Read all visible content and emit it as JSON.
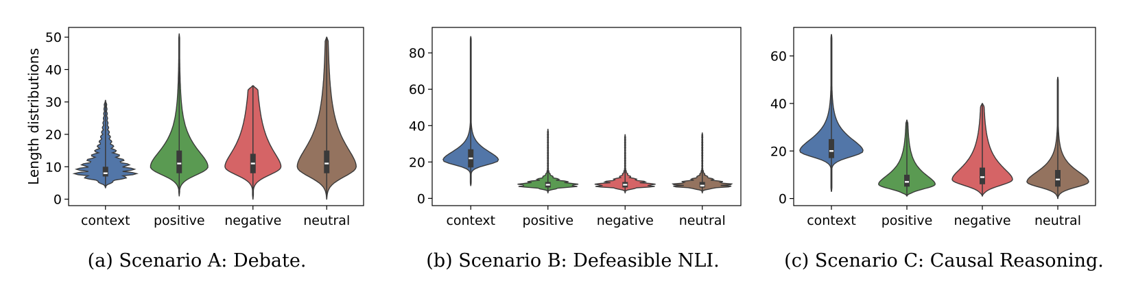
{
  "palette": {
    "context": "#5276a8",
    "positive": "#5a9a52",
    "negative": "#d56466",
    "neutral": "#94735f",
    "outline": "#3a3a3a"
  },
  "chart_data": [
    {
      "type": "violin",
      "panel": "a",
      "caption": "(a) Scenario A: Debate.",
      "ylabel": "Length distributions",
      "xlabel": "",
      "categories": [
        "context",
        "positive",
        "negative",
        "neutral"
      ],
      "ylim": [
        -2,
        53
      ],
      "yticks": [
        0,
        10,
        20,
        30,
        40,
        50
      ],
      "grid": false,
      "legend": "none",
      "series": [
        {
          "category": "context",
          "min": 3.5,
          "q1": 7,
          "median": 8,
          "q3": 10,
          "max": 30.5,
          "mode": 8,
          "width": 0.85,
          "spread": 3,
          "hatched": true
        },
        {
          "category": "positive",
          "min": 1,
          "q1": 8,
          "median": 11,
          "q3": 15,
          "max": 51,
          "mode": 10,
          "width": 0.78,
          "spread": 4.5,
          "hatched": false
        },
        {
          "category": "negative",
          "min": 0,
          "q1": 8,
          "median": 11,
          "q3": 14,
          "max": 35,
          "mode": 10,
          "width": 0.76,
          "spread": 4.5,
          "hatched": false
        },
        {
          "category": "neutral",
          "min": 0,
          "q1": 8,
          "median": 11,
          "q3": 15,
          "max": 50,
          "mode": 10,
          "width": 0.8,
          "spread": 5.5,
          "hatched": false
        }
      ]
    },
    {
      "type": "violin",
      "panel": "b",
      "caption": "(b) Scenario B: Defeasible NLI.",
      "ylabel": "",
      "xlabel": "",
      "categories": [
        "context",
        "positive",
        "negative",
        "neutral"
      ],
      "ylim": [
        -4,
        94
      ],
      "yticks": [
        0,
        20,
        40,
        60,
        80
      ],
      "grid": false,
      "legend": "none",
      "series": [
        {
          "category": "context",
          "min": 7,
          "q1": 17,
          "median": 22,
          "q3": 27,
          "max": 89,
          "mode": 21,
          "width": 0.72,
          "spread": 4.5,
          "hatched": false
        },
        {
          "category": "positive",
          "min": 3,
          "q1": 6,
          "median": 7.5,
          "q3": 9,
          "max": 38,
          "mode": 7,
          "width": 0.85,
          "spread": 2,
          "hatched": true
        },
        {
          "category": "negative",
          "min": 3,
          "q1": 6,
          "median": 7.5,
          "q3": 9,
          "max": 35,
          "mode": 7,
          "width": 0.85,
          "spread": 2,
          "hatched": true
        },
        {
          "category": "neutral",
          "min": 3,
          "q1": 6,
          "median": 7,
          "q3": 9,
          "max": 36,
          "mode": 7,
          "width": 0.85,
          "spread": 2,
          "hatched": true
        }
      ]
    },
    {
      "type": "violin",
      "panel": "c",
      "caption": "(c) Scenario C: Causal Reasoning.",
      "ylabel": "",
      "xlabel": "",
      "categories": [
        "context",
        "positive",
        "negative",
        "neutral"
      ],
      "ylim": [
        -3,
        72
      ],
      "yticks": [
        0,
        20,
        40,
        60
      ],
      "grid": false,
      "legend": "none",
      "series": [
        {
          "category": "context",
          "min": 3,
          "q1": 17,
          "median": 20,
          "q3": 25,
          "max": 69,
          "mode": 20,
          "width": 0.84,
          "spread": 4.5,
          "hatched": false
        },
        {
          "category": "positive",
          "min": 1,
          "q1": 5,
          "median": 7,
          "q3": 10,
          "max": 33,
          "mode": 6,
          "width": 0.75,
          "spread": 3.5,
          "hatched": false
        },
        {
          "category": "negative",
          "min": 1,
          "q1": 6,
          "median": 9,
          "q3": 13,
          "max": 40,
          "mode": 8,
          "width": 0.8,
          "spread": 4.5,
          "hatched": false
        },
        {
          "category": "neutral",
          "min": 0,
          "q1": 5,
          "median": 8,
          "q3": 12,
          "max": 51,
          "mode": 7,
          "width": 0.82,
          "spread": 4,
          "hatched": false
        }
      ]
    }
  ]
}
